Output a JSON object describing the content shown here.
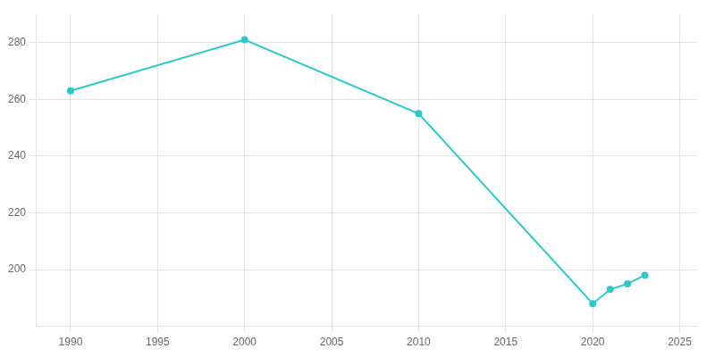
{
  "chart_data": {
    "type": "line",
    "x": [
      1990,
      2000,
      2010,
      2020,
      2021,
      2022,
      2023
    ],
    "values": [
      263,
      281,
      255,
      188,
      193,
      195,
      198
    ],
    "color": "#2ec8c8",
    "marker": "circle",
    "xlim": [
      1988,
      2026
    ],
    "xticks": [
      1990,
      1995,
      2000,
      2005,
      2010,
      2015,
      2020,
      2025
    ],
    "ylim": [
      180,
      290
    ],
    "yticks": [
      200,
      220,
      240,
      260,
      280
    ],
    "grid": true
  }
}
